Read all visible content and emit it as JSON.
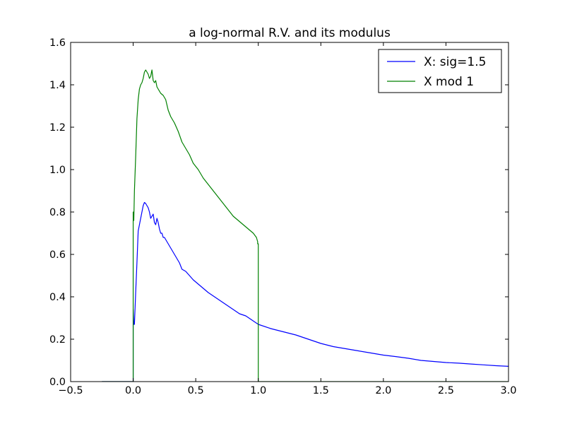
{
  "chart_data": {
    "type": "line",
    "title": "a log-normal R.V. and its modulus",
    "xlabel": "",
    "ylabel": "",
    "xlim": [
      -0.5,
      3.0
    ],
    "ylim": [
      0.0,
      1.6
    ],
    "xticks": [
      -0.5,
      0.0,
      0.5,
      1.0,
      1.5,
      2.0,
      2.5,
      3.0
    ],
    "xtick_labels": [
      "−0.5",
      "0.0",
      "0.5",
      "1.0",
      "1.5",
      "2.0",
      "2.5",
      "3.0"
    ],
    "yticks": [
      0.0,
      0.2,
      0.4,
      0.6,
      0.8,
      1.0,
      1.2,
      1.4,
      1.6
    ],
    "ytick_labels": [
      "0.0",
      "0.2",
      "0.4",
      "0.6",
      "0.8",
      "1.0",
      "1.2",
      "1.4",
      "1.6"
    ],
    "grid": false,
    "legend_position": "top-right",
    "series": [
      {
        "name": "X: sig=1.5",
        "color": "#0000ff",
        "x": [
          -0.25,
          -0.005,
          0.0,
          0.0,
          0.005,
          0.01,
          0.02,
          0.03,
          0.04,
          0.05,
          0.06,
          0.07,
          0.08,
          0.09,
          0.1,
          0.11,
          0.12,
          0.13,
          0.14,
          0.15,
          0.16,
          0.17,
          0.18,
          0.19,
          0.2,
          0.21,
          0.22,
          0.23,
          0.24,
          0.25,
          0.27,
          0.29,
          0.31,
          0.33,
          0.35,
          0.37,
          0.39,
          0.42,
          0.45,
          0.48,
          0.52,
          0.56,
          0.6,
          0.65,
          0.7,
          0.75,
          0.8,
          0.85,
          0.9,
          0.95,
          1.0,
          1.1,
          1.2,
          1.3,
          1.4,
          1.5,
          1.6,
          1.7,
          1.8,
          1.9,
          2.0,
          2.1,
          2.2,
          2.3,
          2.4,
          2.5,
          2.6,
          2.7,
          2.8,
          2.9,
          3.0
        ],
        "y": [
          0.0,
          0.0,
          0.0,
          0.34,
          0.27,
          0.27,
          0.42,
          0.56,
          0.71,
          0.74,
          0.77,
          0.8,
          0.83,
          0.845,
          0.84,
          0.83,
          0.82,
          0.8,
          0.77,
          0.78,
          0.79,
          0.75,
          0.74,
          0.77,
          0.75,
          0.72,
          0.7,
          0.7,
          0.68,
          0.68,
          0.66,
          0.64,
          0.62,
          0.6,
          0.58,
          0.56,
          0.53,
          0.52,
          0.5,
          0.48,
          0.46,
          0.44,
          0.42,
          0.4,
          0.38,
          0.36,
          0.34,
          0.32,
          0.31,
          0.29,
          0.27,
          0.25,
          0.235,
          0.22,
          0.2,
          0.18,
          0.165,
          0.155,
          0.145,
          0.135,
          0.125,
          0.118,
          0.11,
          0.1,
          0.095,
          0.09,
          0.087,
          0.083,
          0.079,
          0.075,
          0.072
        ]
      },
      {
        "name": "X mod 1",
        "color": "#008000",
        "x": [
          -0.25,
          -0.005,
          0.0,
          0.0,
          0.005,
          0.01,
          0.02,
          0.03,
          0.04,
          0.05,
          0.06,
          0.07,
          0.08,
          0.09,
          0.1,
          0.11,
          0.12,
          0.13,
          0.14,
          0.15,
          0.16,
          0.17,
          0.18,
          0.19,
          0.2,
          0.22,
          0.24,
          0.26,
          0.28,
          0.3,
          0.33,
          0.36,
          0.39,
          0.42,
          0.45,
          0.48,
          0.52,
          0.56,
          0.6,
          0.64,
          0.68,
          0.72,
          0.76,
          0.8,
          0.84,
          0.88,
          0.92,
          0.96,
          0.985,
          0.995,
          0.995,
          1.0,
          1.0,
          1.2,
          1.5,
          2.0,
          2.5,
          3.0
        ],
        "y": [
          0.0,
          0.0,
          0.0,
          0.8,
          0.76,
          0.9,
          1.06,
          1.24,
          1.33,
          1.38,
          1.4,
          1.41,
          1.43,
          1.46,
          1.47,
          1.46,
          1.45,
          1.43,
          1.44,
          1.47,
          1.42,
          1.41,
          1.42,
          1.39,
          1.38,
          1.36,
          1.35,
          1.33,
          1.28,
          1.25,
          1.22,
          1.18,
          1.13,
          1.1,
          1.07,
          1.03,
          1.0,
          0.96,
          0.93,
          0.9,
          0.87,
          0.84,
          0.81,
          0.78,
          0.76,
          0.74,
          0.72,
          0.7,
          0.68,
          0.66,
          0.65,
          0.65,
          0.0,
          0.0,
          0.0,
          0.0,
          0.0,
          0.0
        ]
      }
    ]
  }
}
